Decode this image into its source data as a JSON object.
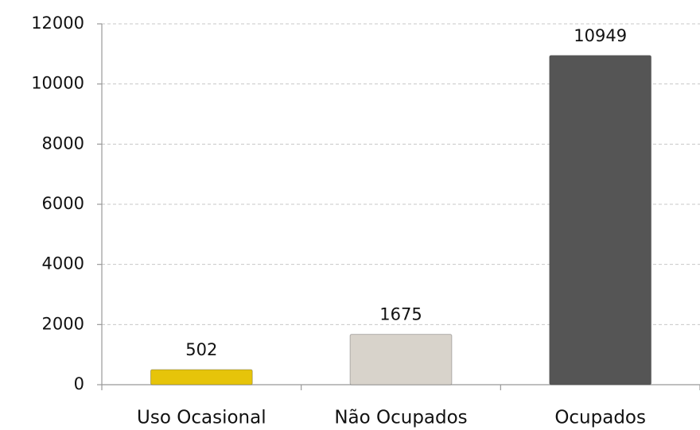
{
  "chart_data": {
    "type": "bar",
    "categories": [
      "Uso Ocasional",
      "Não Ocupados",
      "Ocupados"
    ],
    "values": [
      502,
      1675,
      10949
    ],
    "colors": [
      "#e6c40a",
      "#d8d3cb",
      "#555555"
    ],
    "ylim": [
      0,
      12000
    ],
    "yticks": [
      0,
      2000,
      4000,
      6000,
      8000,
      10000,
      12000
    ],
    "grid": true
  }
}
